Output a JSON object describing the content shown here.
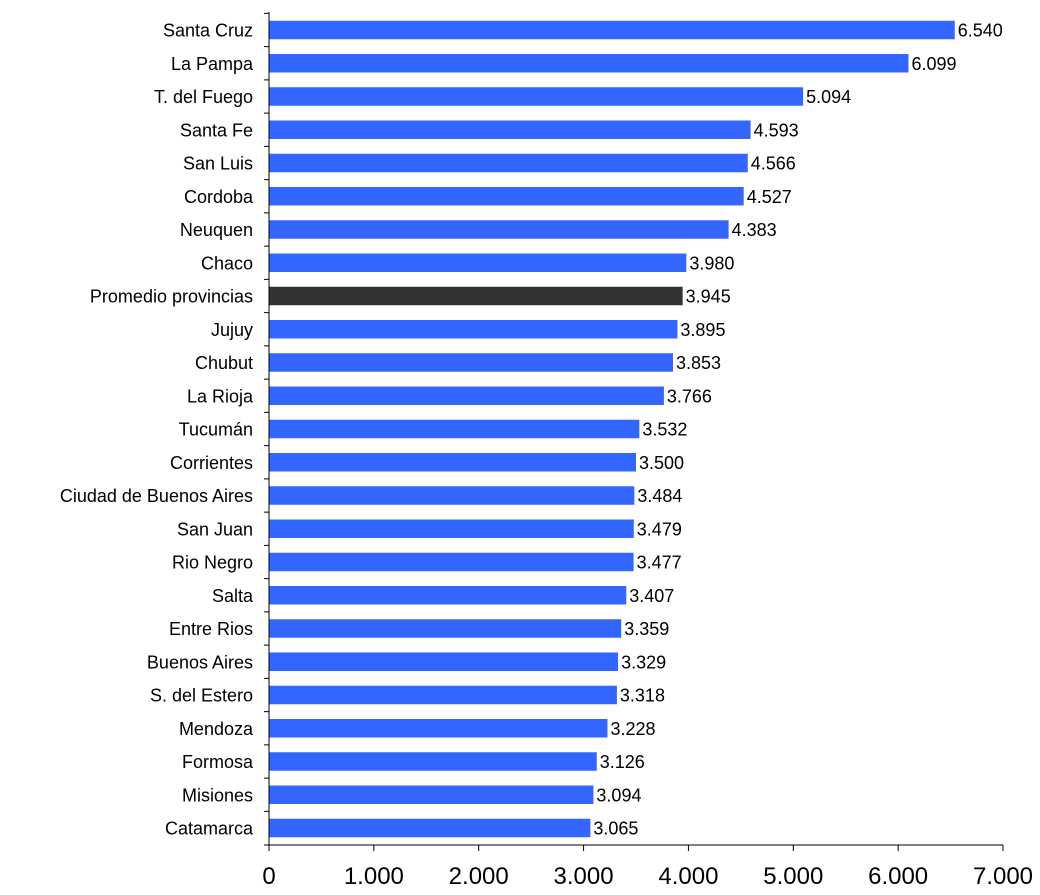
{
  "chart_data": {
    "type": "bar",
    "orientation": "horizontal",
    "categories": [
      "Santa Cruz",
      "La Pampa",
      "T. del Fuego",
      "Santa Fe",
      "San Luis",
      "Cordoba",
      "Neuquen",
      "Chaco",
      "Promedio provincias",
      "Jujuy",
      "Chubut",
      "La Rioja",
      "Tucumán",
      "Corrientes",
      "Ciudad de Buenos Aires",
      "San Juan",
      "Rio Negro",
      "Salta",
      "Entre Rios",
      "Buenos Aires",
      "S. del Estero",
      "Mendoza",
      "Formosa",
      "Misiones",
      "Catamarca"
    ],
    "values": [
      6540,
      6099,
      5094,
      4593,
      4566,
      4527,
      4383,
      3980,
      3945,
      3895,
      3853,
      3766,
      3532,
      3500,
      3484,
      3479,
      3477,
      3407,
      3359,
      3329,
      3318,
      3228,
      3126,
      3094,
      3065
    ],
    "value_labels": [
      "6.540",
      "6.099",
      "5.094",
      "4.593",
      "4.566",
      "4.527",
      "4.383",
      "3.980",
      "3.945",
      "3.895",
      "3.853",
      "3.766",
      "3.532",
      "3.500",
      "3.484",
      "3.479",
      "3.477",
      "3.407",
      "3.359",
      "3.329",
      "3.318",
      "3.228",
      "3.126",
      "3.094",
      "3.065"
    ],
    "highlight_category": "Promedio provincias",
    "xlim": [
      0,
      7000
    ],
    "x_ticks": [
      0,
      1000,
      2000,
      3000,
      4000,
      5000,
      6000,
      7000
    ],
    "x_tick_labels": [
      "0",
      "1.000",
      "2.000",
      "3.000",
      "4.000",
      "5.000",
      "6.000",
      "7.000"
    ],
    "title": "",
    "xlabel": "",
    "ylabel": "",
    "grid": false,
    "colors": {
      "bar": "#3366ff",
      "highlight_bar": "#333333",
      "axis": "#000000"
    }
  }
}
